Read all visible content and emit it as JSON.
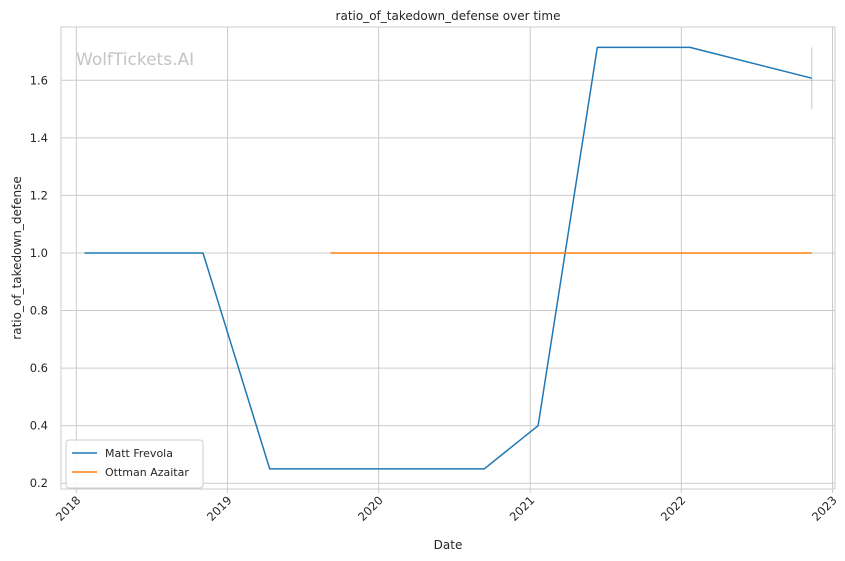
{
  "chart_data": {
    "type": "line",
    "title": "ratio_of_takedown_defense over time",
    "xlabel": "Date",
    "ylabel": "ratio_of_takedown_defense",
    "watermark": "WolfTickets.AI",
    "x_is_date": true,
    "xlim": [
      "2017-11-25",
      "2023-01-07"
    ],
    "ylim": [
      0.18,
      1.785
    ],
    "x_ticks": [
      "2018",
      "2019",
      "2020",
      "2021",
      "2022",
      "2023"
    ],
    "x_tick_dates": [
      "2018-01-01",
      "2019-01-01",
      "2020-01-01",
      "2021-01-01",
      "2022-01-01",
      "2023-01-01"
    ],
    "y_ticks": [
      "0.2",
      "0.4",
      "0.6",
      "0.8",
      "1.0",
      "1.2",
      "1.4",
      "1.6"
    ],
    "y_tick_values": [
      0.2,
      0.4,
      0.6,
      0.8,
      1.0,
      1.2,
      1.4,
      1.6
    ],
    "grid": true,
    "legend_position": "lower-left",
    "series": [
      {
        "name": "Matt Frevola",
        "color": "#1f77b4",
        "points": [
          {
            "x": "2018-01-21",
            "y": 1.0
          },
          {
            "x": "2018-11-03",
            "y": 1.0
          },
          {
            "x": "2019-04-13",
            "y": 0.25
          },
          {
            "x": "2020-09-12",
            "y": 0.25
          },
          {
            "x": "2021-01-20",
            "y": 0.4
          },
          {
            "x": "2021-06-12",
            "y": 1.714
          },
          {
            "x": "2022-01-22",
            "y": 1.714
          },
          {
            "x": "2022-11-12",
            "y": 1.607
          }
        ],
        "error_bar": {
          "x": "2022-11-12",
          "y_low": 1.5,
          "y_high": 1.714
        }
      },
      {
        "name": "Ottman Azaitar",
        "color": "#ff7f0e",
        "points": [
          {
            "x": "2019-09-07",
            "y": 1.0
          },
          {
            "x": "2022-11-12",
            "y": 1.0
          }
        ]
      }
    ]
  }
}
